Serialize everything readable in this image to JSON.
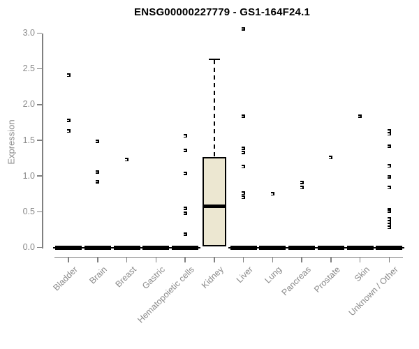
{
  "chart_data": {
    "type": "boxplot",
    "title": "ENSG00000227779 - GS1-164F24.1",
    "xlabel": "",
    "ylabel": "Expression",
    "ylim": [
      0.0,
      3.0
    ],
    "yticks": [
      0.0,
      0.5,
      1.0,
      1.5,
      2.0,
      2.5,
      3.0
    ],
    "grid": false,
    "legend": "none",
    "colors": {
      "box_fill": "#ece7d1",
      "box_border": "#000000",
      "median": "#000000",
      "outlier": "#000000",
      "axis_line": "#808080",
      "axis_text": "#8a8a8a",
      "title_text": "#000000",
      "background": "#ffffff"
    },
    "categories": [
      "Bladder",
      "Brain",
      "Breast",
      "Gastric",
      "Hematopoietic cells",
      "Kidney",
      "Liver",
      "Lung",
      "Pancreas",
      "Prostate",
      "Skin",
      "Unknown / Other"
    ],
    "series": [
      {
        "category": "Bladder",
        "box": {
          "q1": 0,
          "median": 0,
          "q3": 0,
          "whisker_low": 0,
          "whisker_high": 0
        },
        "outliers": [
          2.41,
          1.78,
          1.63
        ]
      },
      {
        "category": "Brain",
        "box": {
          "q1": 0,
          "median": 0,
          "q3": 0,
          "whisker_low": 0,
          "whisker_high": 0
        },
        "outliers": [
          1.49,
          1.06,
          0.92
        ]
      },
      {
        "category": "Breast",
        "box": {
          "q1": 0,
          "median": 0,
          "q3": 0,
          "whisker_low": 0,
          "whisker_high": 0
        },
        "outliers": [
          1.23
        ]
      },
      {
        "category": "Gastric",
        "box": {
          "q1": 0,
          "median": 0,
          "q3": 0,
          "whisker_low": 0,
          "whisker_high": 0
        },
        "outliers": []
      },
      {
        "category": "Hematopoietic cells",
        "box": {
          "q1": 0,
          "median": 0,
          "q3": 0,
          "whisker_low": 0,
          "whisker_high": 0
        },
        "outliers": [
          1.56,
          1.36,
          1.04,
          0.55,
          0.48,
          0.19
        ]
      },
      {
        "category": "Kidney",
        "box": {
          "q1": 0.01,
          "median": 0.58,
          "q3": 1.27,
          "whisker_low": 0.0,
          "whisker_high": 2.63
        },
        "outliers": []
      },
      {
        "category": "Liver",
        "box": {
          "q1": 0,
          "median": 0,
          "q3": 0,
          "whisker_low": 0,
          "whisker_high": 0
        },
        "outliers": [
          3.06,
          1.84,
          1.39,
          1.33,
          1.13,
          0.76,
          0.7
        ]
      },
      {
        "category": "Lung",
        "box": {
          "q1": 0,
          "median": 0,
          "q3": 0,
          "whisker_low": 0,
          "whisker_high": 0
        },
        "outliers": [
          0.75
        ]
      },
      {
        "category": "Pancreas",
        "box": {
          "q1": 0,
          "median": 0,
          "q3": 0,
          "whisker_low": 0,
          "whisker_high": 0
        },
        "outliers": [
          0.91,
          0.84
        ]
      },
      {
        "category": "Prostate",
        "box": {
          "q1": 0,
          "median": 0,
          "q3": 0,
          "whisker_low": 0,
          "whisker_high": 0
        },
        "outliers": [
          1.26
        ]
      },
      {
        "category": "Skin",
        "box": {
          "q1": 0,
          "median": 0,
          "q3": 0,
          "whisker_low": 0,
          "whisker_high": 0
        },
        "outliers": [
          1.84
        ]
      },
      {
        "category": "Unknown / Other",
        "box": {
          "q1": 0,
          "median": 0,
          "q3": 0,
          "whisker_low": 0,
          "whisker_high": 0
        },
        "outliers": [
          1.63,
          1.59,
          1.42,
          1.14,
          0.99,
          0.84,
          0.53,
          0.51,
          0.4,
          0.36,
          0.32,
          0.28
        ]
      }
    ]
  }
}
